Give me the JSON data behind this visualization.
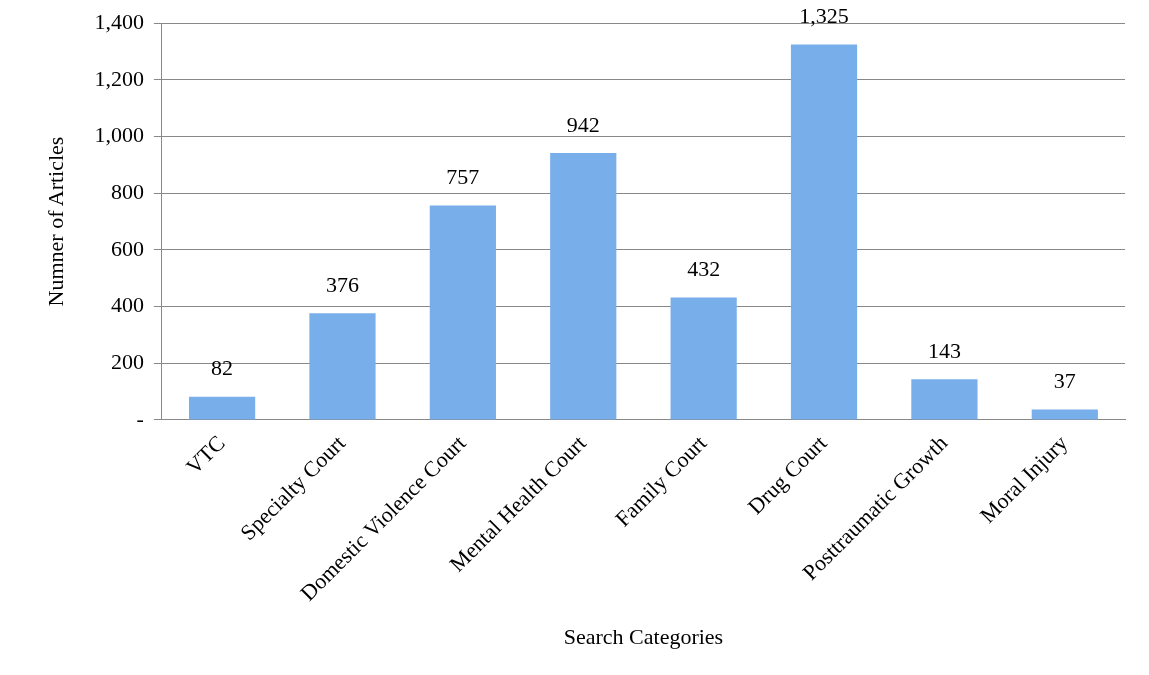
{
  "chart_data": {
    "type": "bar",
    "xlabel": "Search Categories",
    "ylabel": "Numner of Articles",
    "categories": [
      "VTC",
      "Specialty Court",
      "Domestic Violence Court",
      "Mental Health Court",
      "Family Court",
      "Drug Court",
      "Posttraumatic Growth",
      "Moral Injury"
    ],
    "values": [
      82,
      376,
      757,
      942,
      432,
      1325,
      143,
      37
    ],
    "value_labels": [
      "82",
      "376",
      "757",
      "942",
      "432",
      "1,325",
      "143",
      "37"
    ],
    "color": "#78aeea",
    "ylim": [
      0,
      1400
    ],
    "yticks": [
      {
        "value": 0,
        "label": "-"
      },
      200,
      400,
      600,
      800,
      {
        "value": 1000,
        "label": "1,000"
      },
      {
        "value": 1200,
        "label": "1,200"
      },
      {
        "value": 1400,
        "label": "1,400"
      }
    ],
    "grid": "y",
    "legend": false
  }
}
